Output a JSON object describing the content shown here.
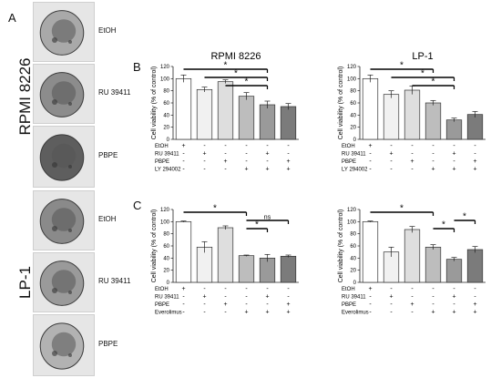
{
  "figure": {
    "panel_labels": [
      "A",
      "B",
      "C"
    ],
    "group_labels": [
      "RPMI 8226",
      "LP-1"
    ]
  },
  "micrographs": [
    {
      "label": "EtOH",
      "tone": "#a9a9a9"
    },
    {
      "label": "RU 39411",
      "tone": "#8c8c8c"
    },
    {
      "label": "PBPE",
      "tone": "#5e5e5e"
    },
    {
      "label": "EtOH",
      "tone": "#8a8a8a"
    },
    {
      "label": "RU 39411",
      "tone": "#9a9a9a"
    },
    {
      "label": "PBPE",
      "tone": "#b2b2b2"
    }
  ],
  "chart_data": [
    {
      "type": "bar",
      "title": "RPMI 8226",
      "ylabel": "Cell viability (% of control)",
      "ylim": [
        0,
        120
      ],
      "yticks": [
        0,
        20,
        40,
        60,
        80,
        100,
        120
      ],
      "values": [
        100,
        82,
        95,
        71,
        57,
        54
      ],
      "errors": [
        6,
        4,
        3,
        6,
        6,
        5
      ],
      "bar_colors": [
        "#ffffff",
        "#f1f1f1",
        "#dedede",
        "#bdbdbd",
        "#9a9a9a",
        "#7b7b7b"
      ],
      "treatments": [
        {
          "name": "EtOH",
          "signs": [
            "+",
            "-",
            "-",
            "-",
            "-",
            "-"
          ]
        },
        {
          "name": "RU 39411",
          "signs": [
            "-",
            "+",
            "-",
            "-",
            "+",
            "-"
          ]
        },
        {
          "name": "PBPE",
          "signs": [
            "-",
            "-",
            "+",
            "-",
            "-",
            "+"
          ]
        },
        {
          "name": "LY 294002",
          "signs": [
            "-",
            "-",
            "-",
            "+",
            "+",
            "+"
          ]
        }
      ],
      "significance": [
        {
          "from": 1,
          "to": 5,
          "label": "*",
          "level": 0
        },
        {
          "from": 2,
          "to": 5,
          "label": "*",
          "level": 1
        },
        {
          "from": 3,
          "to": 5,
          "label": "*",
          "level": 2
        }
      ]
    },
    {
      "type": "bar",
      "title": "LP-1",
      "ylabel": "Cell viability (% of control)",
      "ylim": [
        0,
        120
      ],
      "yticks": [
        0,
        20,
        40,
        60,
        80,
        100,
        120
      ],
      "values": [
        100,
        74,
        81,
        60,
        32,
        41
      ],
      "errors": [
        6,
        6,
        7,
        4,
        3,
        5
      ],
      "bar_colors": [
        "#ffffff",
        "#f1f1f1",
        "#dedede",
        "#bdbdbd",
        "#9a9a9a",
        "#7b7b7b"
      ],
      "treatments": [
        {
          "name": "EtOH",
          "signs": [
            "+",
            "-",
            "-",
            "-",
            "-",
            "-"
          ]
        },
        {
          "name": "RU 39411",
          "signs": [
            "-",
            "+",
            "-",
            "-",
            "+",
            "-"
          ]
        },
        {
          "name": "PBPE",
          "signs": [
            "-",
            "-",
            "+",
            "-",
            "-",
            "+"
          ]
        },
        {
          "name": "LY 294002",
          "signs": [
            "-",
            "-",
            "-",
            "+",
            "+",
            "+"
          ]
        }
      ],
      "significance": [
        {
          "from": 1,
          "to": 4,
          "label": "*",
          "level": 0
        },
        {
          "from": 2,
          "to": 5,
          "label": "*",
          "level": 1
        },
        {
          "from": 3,
          "to": 5,
          "label": "*",
          "level": 2
        }
      ]
    },
    {
      "type": "bar",
      "title": "",
      "ylabel": "Cell viability (% of control)",
      "ylim": [
        0,
        120
      ],
      "yticks": [
        0,
        20,
        40,
        60,
        80,
        100,
        120
      ],
      "values": [
        100,
        58,
        90,
        44,
        40,
        43
      ],
      "errors": [
        1,
        9,
        3,
        1,
        6,
        2
      ],
      "bar_colors": [
        "#ffffff",
        "#f1f1f1",
        "#dedede",
        "#bdbdbd",
        "#9a9a9a",
        "#7b7b7b"
      ],
      "treatments": [
        {
          "name": "EtOH",
          "signs": [
            "+",
            "-",
            "-",
            "-",
            "-",
            "-"
          ]
        },
        {
          "name": "RU 39411",
          "signs": [
            "-",
            "+",
            "-",
            "-",
            "+",
            "-"
          ]
        },
        {
          "name": "PBPE",
          "signs": [
            "-",
            "-",
            "+",
            "-",
            "-",
            "+"
          ]
        },
        {
          "name": "Everolimus",
          "signs": [
            "-",
            "-",
            "-",
            "+",
            "+",
            "+"
          ]
        }
      ],
      "significance": [
        {
          "from": 1,
          "to": 4,
          "label": "*",
          "level": 0
        },
        {
          "from": 4,
          "to": 6,
          "label": "ns",
          "level": 1
        },
        {
          "from": 4,
          "to": 5,
          "label": "*",
          "level": 2
        }
      ]
    },
    {
      "type": "bar",
      "title": "",
      "ylabel": "Cell viability (% of control)",
      "ylim": [
        0,
        120
      ],
      "yticks": [
        0,
        20,
        40,
        60,
        80,
        100,
        120
      ],
      "values": [
        100,
        50,
        87,
        58,
        38,
        54
      ],
      "errors": [
        1,
        8,
        5,
        4,
        3,
        5
      ],
      "bar_colors": [
        "#ffffff",
        "#f1f1f1",
        "#dedede",
        "#bdbdbd",
        "#9a9a9a",
        "#7b7b7b"
      ],
      "treatments": [
        {
          "name": "EtOH",
          "signs": [
            "+",
            "-",
            "-",
            "-",
            "-",
            "-"
          ]
        },
        {
          "name": "RU 39411",
          "signs": [
            "-",
            "+",
            "-",
            "-",
            "+",
            "-"
          ]
        },
        {
          "name": "PBPE",
          "signs": [
            "-",
            "-",
            "+",
            "-",
            "-",
            "+"
          ]
        },
        {
          "name": "Everolimus",
          "signs": [
            "-",
            "-",
            "-",
            "+",
            "+",
            "+"
          ]
        }
      ],
      "significance": [
        {
          "from": 1,
          "to": 4,
          "label": "*",
          "level": 0
        },
        {
          "from": 5,
          "to": 6,
          "label": "*",
          "level": 1
        },
        {
          "from": 4,
          "to": 5,
          "label": "*",
          "level": 2
        }
      ]
    }
  ]
}
